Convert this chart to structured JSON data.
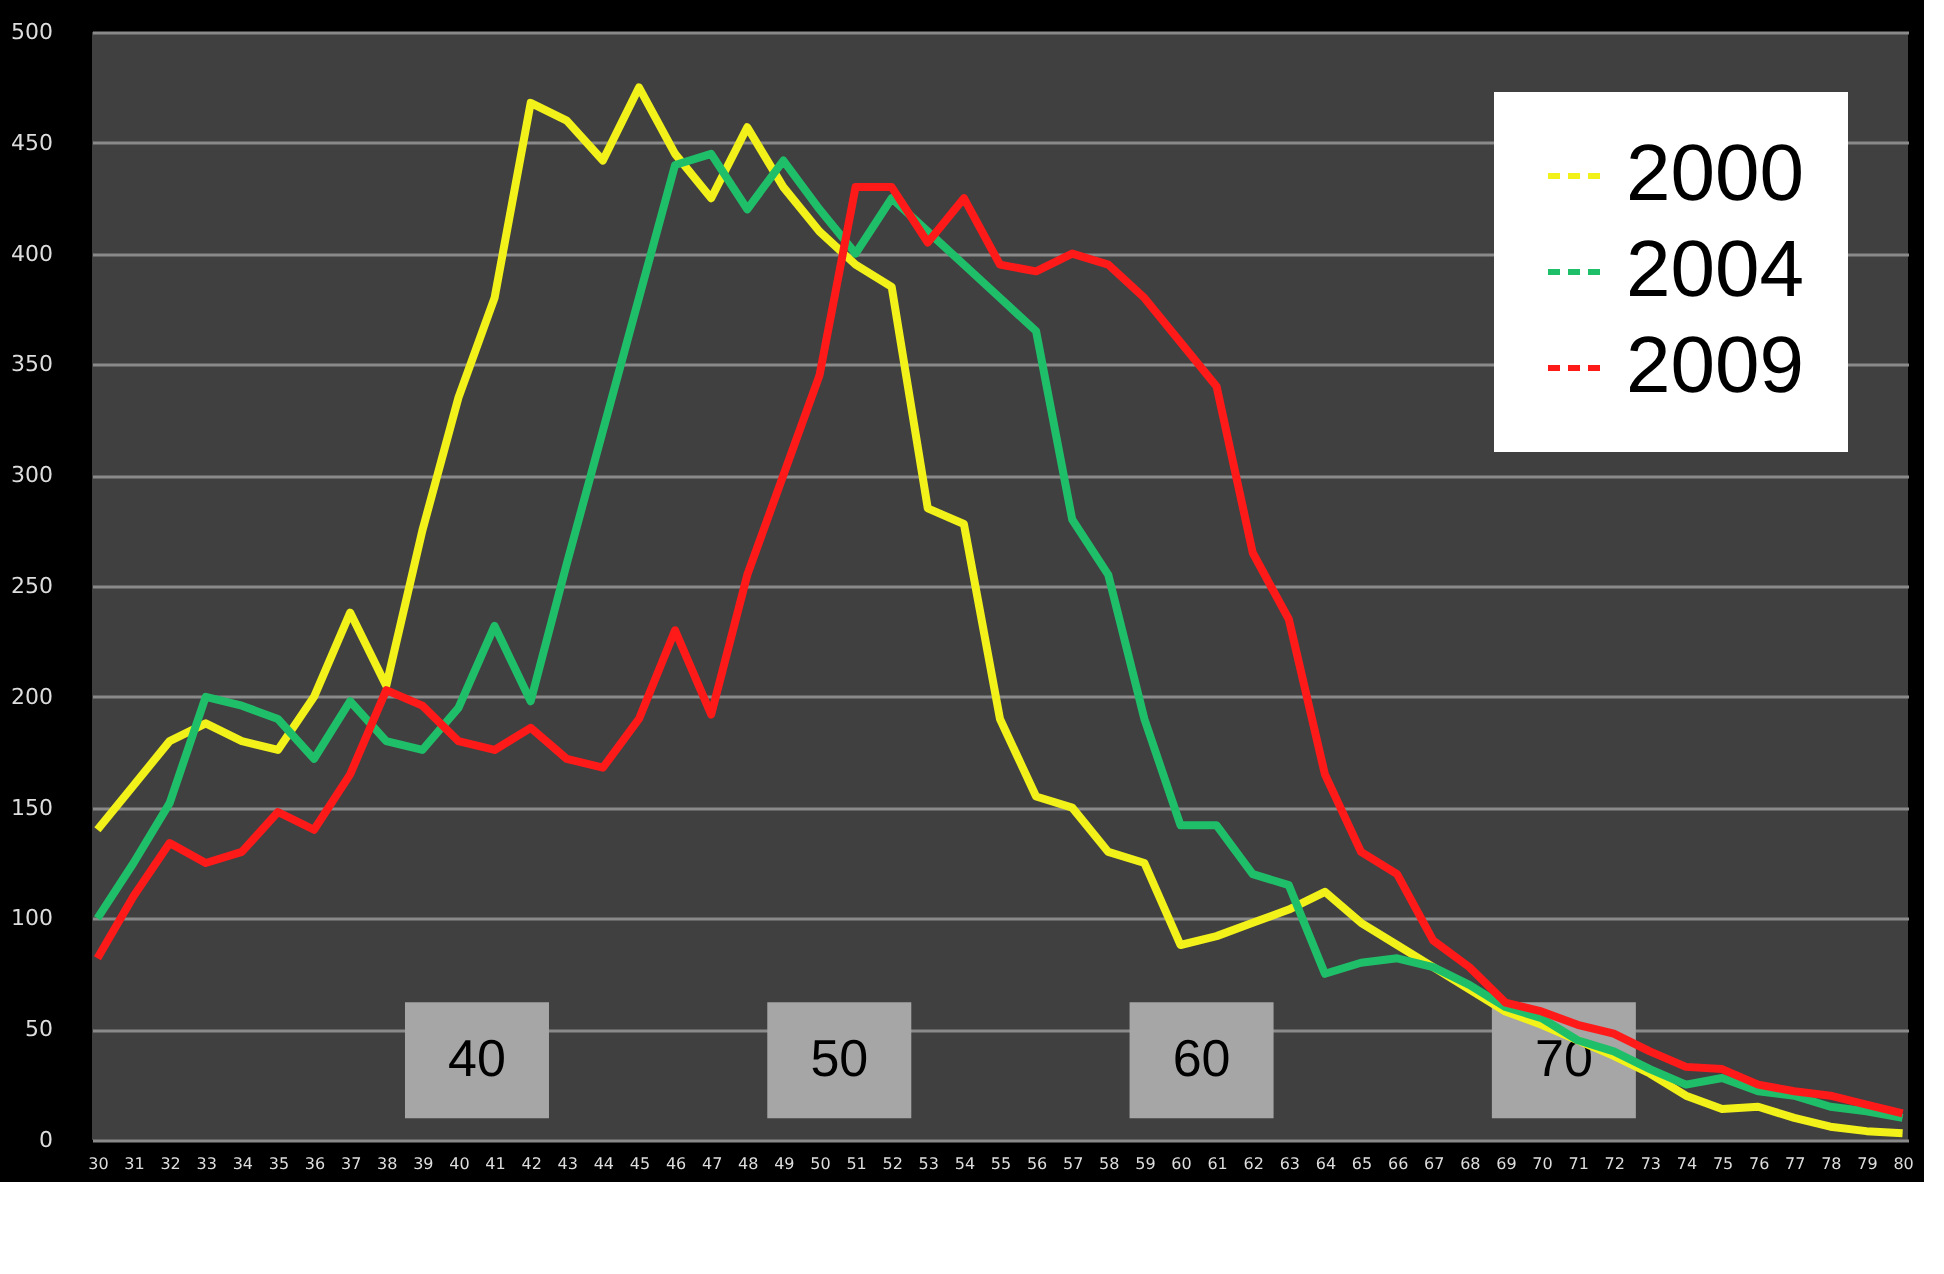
{
  "chart_data": {
    "type": "line",
    "categories": [
      "30",
      "31",
      "32",
      "33",
      "34",
      "35",
      "36",
      "37",
      "38",
      "39",
      "40",
      "41",
      "42",
      "43",
      "44",
      "45",
      "46",
      "47",
      "48",
      "49",
      "50",
      "51",
      "52",
      "53",
      "54",
      "55",
      "56",
      "57",
      "58",
      "59",
      "60",
      "61",
      "62",
      "63",
      "64",
      "65",
      "66",
      "67",
      "68",
      "69",
      "70",
      "71",
      "72",
      "73",
      "74",
      "75",
      "76",
      "77",
      "78",
      "79",
      "80"
    ],
    "series": [
      {
        "name": "2000",
        "color": "#f2f21a",
        "values": [
          140,
          160,
          180,
          188,
          180,
          176,
          200,
          238,
          205,
          275,
          335,
          380,
          468,
          460,
          442,
          475,
          445,
          425,
          457,
          430,
          410,
          395,
          385,
          285,
          278,
          190,
          155,
          150,
          130,
          125,
          88,
          92,
          98,
          104,
          112,
          98,
          88,
          78,
          68,
          58,
          52,
          45,
          38,
          30,
          20,
          14,
          15,
          10,
          6,
          4,
          3
        ]
      },
      {
        "name": "2004",
        "color": "#1fbf6a",
        "values": [
          100,
          125,
          152,
          200,
          196,
          190,
          172,
          198,
          180,
          176,
          195,
          232,
          198,
          260,
          320,
          380,
          440,
          445,
          420,
          442,
          420,
          400,
          425,
          410,
          395,
          380,
          365,
          280,
          255,
          190,
          142,
          142,
          120,
          115,
          75,
          80,
          82,
          78,
          70,
          60,
          55,
          45,
          40,
          32,
          25,
          28,
          22,
          20,
          15,
          13,
          10
        ]
      },
      {
        "name": "2009",
        "color": "#ff1a1a",
        "values": [
          82,
          110,
          134,
          125,
          130,
          148,
          140,
          165,
          203,
          196,
          180,
          176,
          186,
          172,
          168,
          190,
          230,
          192,
          255,
          300,
          345,
          430,
          430,
          405,
          425,
          395,
          392,
          400,
          395,
          380,
          360,
          340,
          265,
          235,
          165,
          130,
          120,
          90,
          78,
          62,
          58,
          52,
          48,
          40,
          33,
          32,
          25,
          22,
          20,
          16,
          12
        ]
      }
    ],
    "ylim": [
      0,
      500
    ],
    "yticks": [
      0,
      50,
      100,
      150,
      200,
      250,
      300,
      350,
      400,
      450,
      500
    ],
    "grid": "y",
    "legend": "top right",
    "marker": "none",
    "line_style": "solid",
    "annotations": [
      "40",
      "50",
      "60",
      "70"
    ]
  }
}
